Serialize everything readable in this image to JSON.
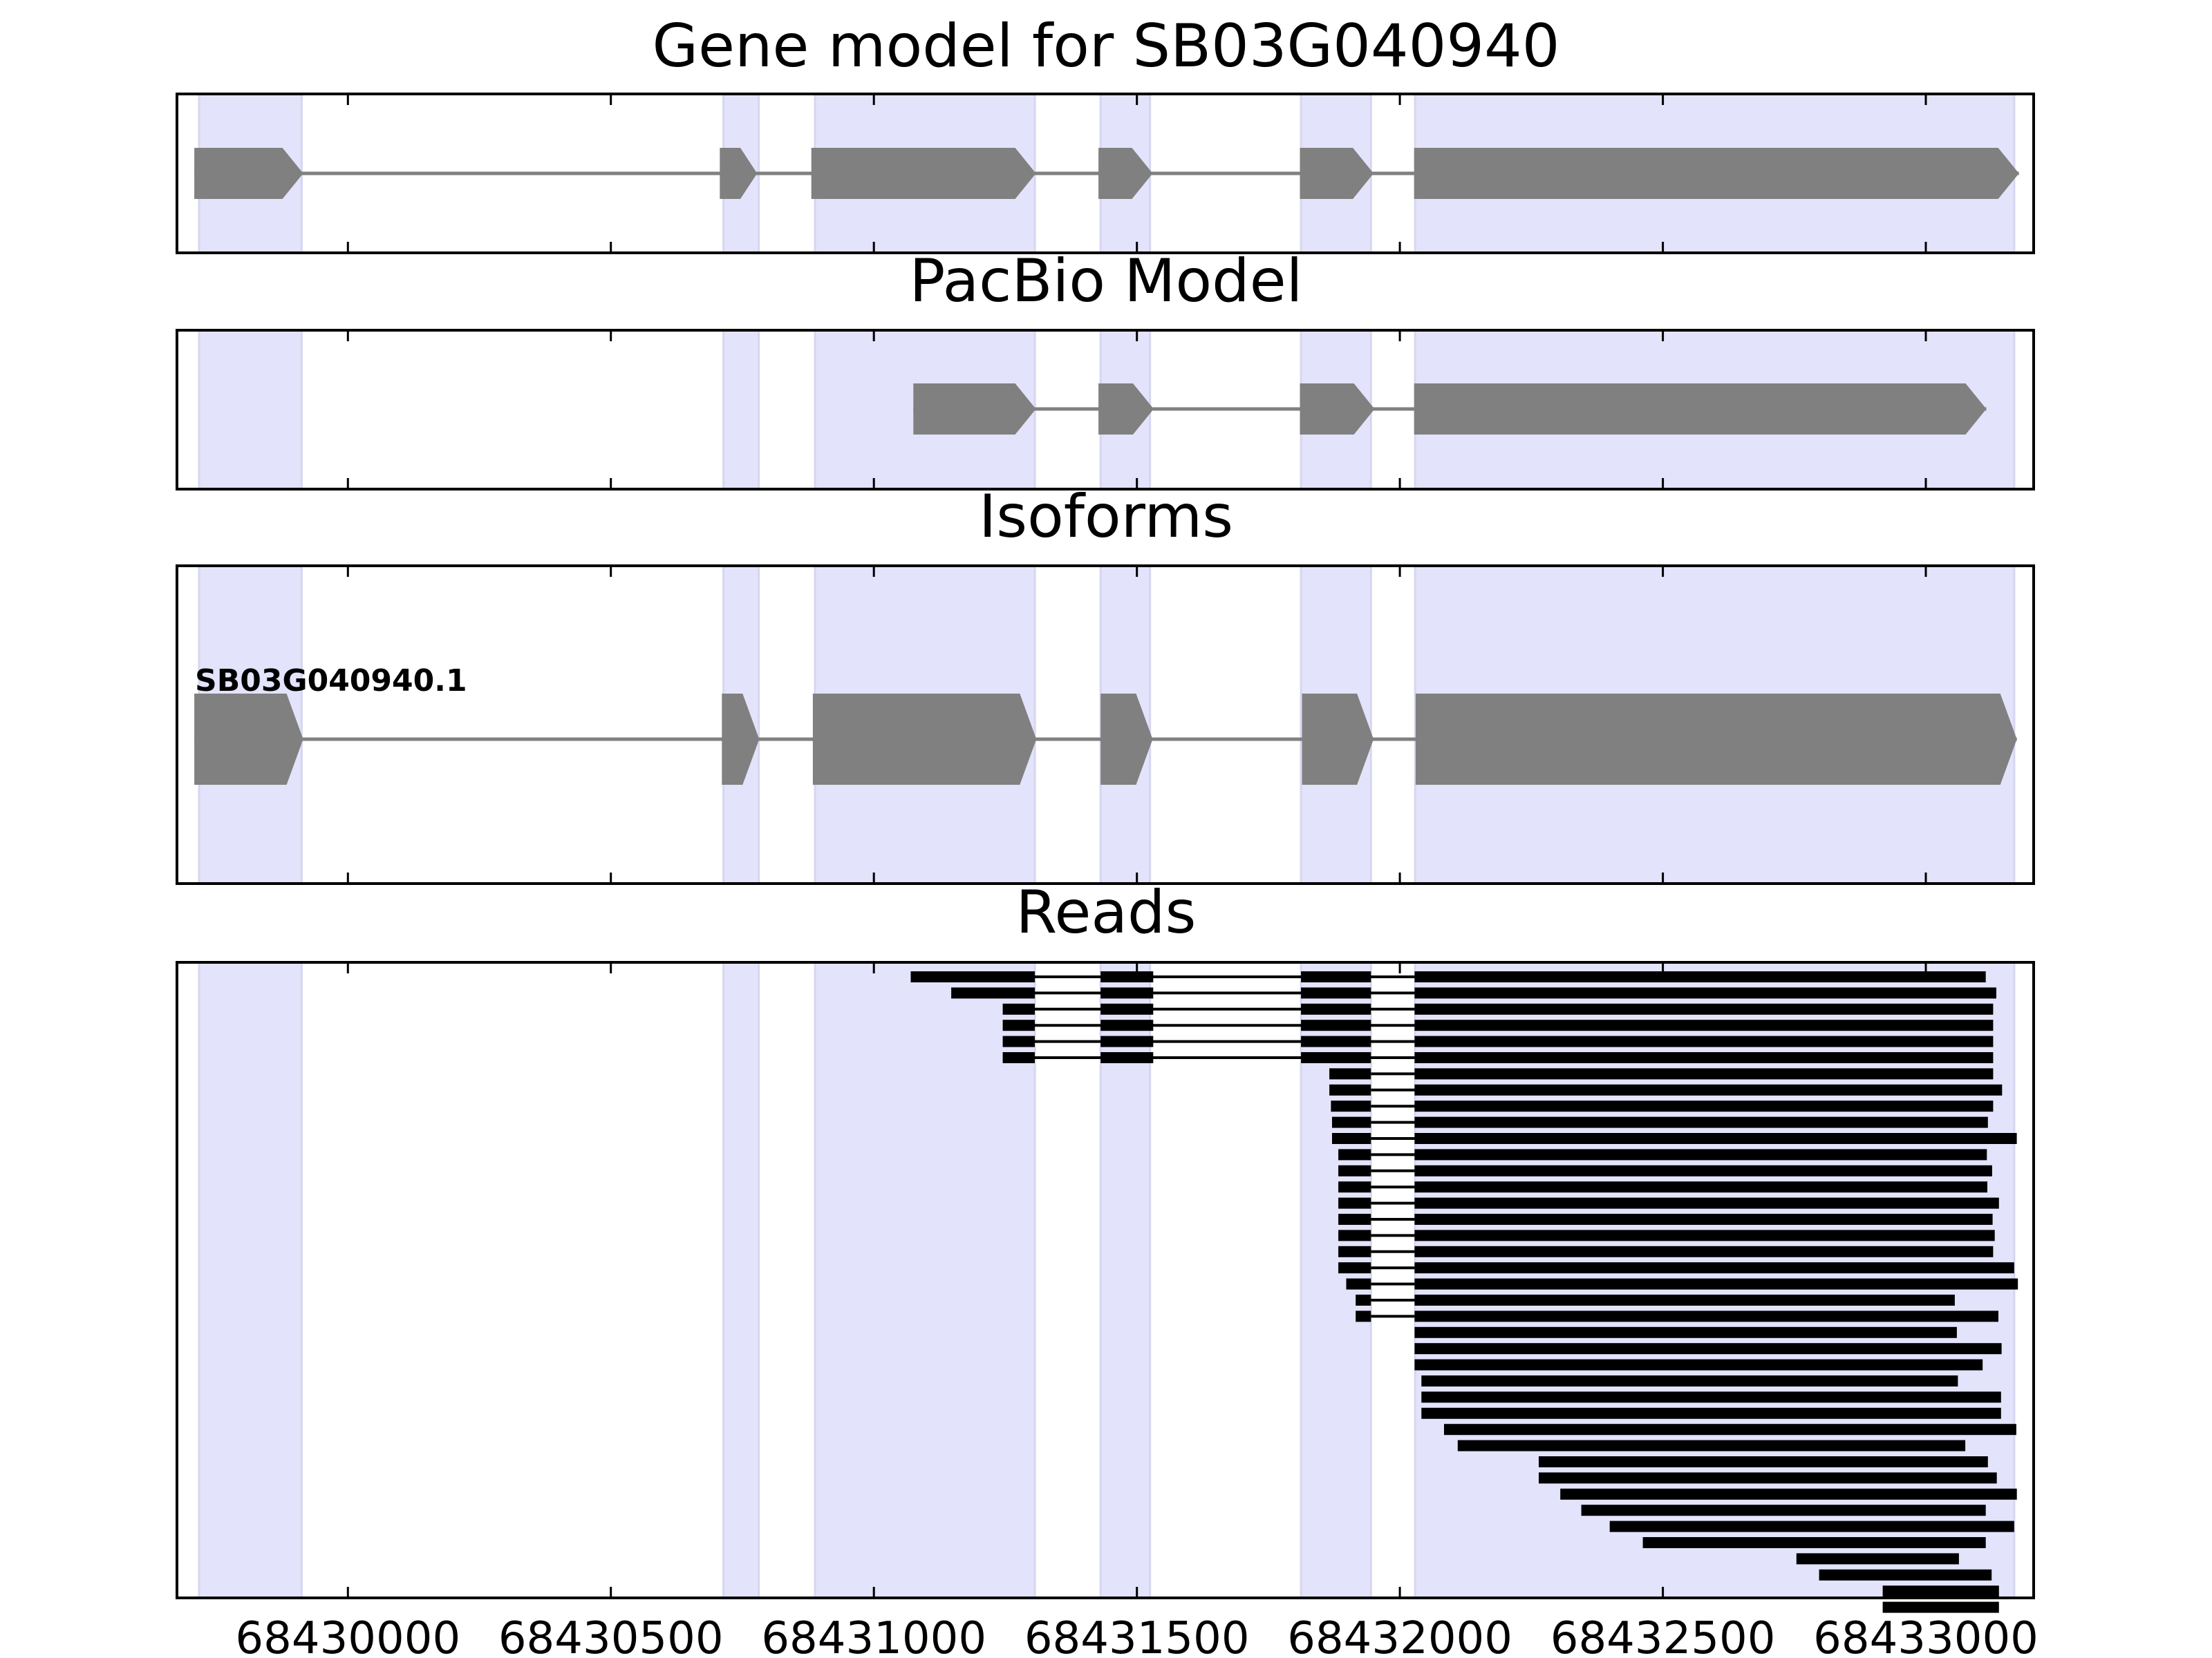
{
  "chart_data": {
    "type": "gene-track",
    "xlim": [
      68429675,
      68433205
    ],
    "x_ticks": [
      68430000,
      68430500,
      68431000,
      68431500,
      68432000,
      68432500,
      68433000
    ],
    "x_tick_labels": [
      "68430000",
      "68430500",
      "68431000",
      "68431500",
      "68432000",
      "68432500",
      "68433000"
    ],
    "colors": {
      "feature": "#808080",
      "read": "#000000",
      "exon_band": "#e3e3fb",
      "frame": "#000000"
    },
    "exon_bands": [
      [
        68429717,
        68429912
      ],
      [
        68430714,
        68430781
      ],
      [
        68430888,
        68431306
      ],
      [
        68431431,
        68431525
      ],
      [
        68431812,
        68431945
      ],
      [
        68432029,
        68433168
      ]
    ],
    "panels": [
      {
        "id": "gene-model",
        "title": "Gene model for SB03G040940",
        "tracks": [
          {
            "exons": [
              [
                68429708,
                68429915
              ],
              [
                68430707,
                68430778
              ],
              [
                68430881,
                68431308
              ],
              [
                68431427,
                68431530
              ],
              [
                68431810,
                68431950
              ],
              [
                68432027,
                68433177
              ]
            ]
          }
        ]
      },
      {
        "id": "pacbio-model",
        "title": "PacBio Model",
        "tracks": [
          {
            "exons": [
              [
                68431075,
                68431308
              ],
              [
                68431427,
                68431532
              ],
              [
                68431810,
                68431952
              ],
              [
                68432027,
                68433115
              ]
            ]
          }
        ]
      },
      {
        "id": "isoforms",
        "title": "Isoforms",
        "tracks": [
          {
            "label": "SB03G040940.1",
            "exons": [
              [
                68429708,
                68429915
              ],
              [
                68430711,
                68430782
              ],
              [
                68430884,
                68431309
              ],
              [
                68431431,
                68431530
              ],
              [
                68431814,
                68431950
              ],
              [
                68432030,
                68433173
              ]
            ]
          }
        ]
      },
      {
        "id": "reads",
        "title": "Reads",
        "tracks": [
          {
            "exons": [
              [
                68431070,
                68431306
              ],
              [
                68431431,
                68431531
              ],
              [
                68431812,
                68431945
              ],
              [
                68432028,
                68433114
              ]
            ]
          },
          {
            "exons": [
              [
                68431147,
                68431306
              ],
              [
                68431431,
                68431531
              ],
              [
                68431812,
                68431945
              ],
              [
                68432028,
                68433134
              ]
            ]
          },
          {
            "exons": [
              [
                68431245,
                68431306
              ],
              [
                68431431,
                68431531
              ],
              [
                68431812,
                68431945
              ],
              [
                68432028,
                68433128
              ]
            ]
          },
          {
            "exons": [
              [
                68431245,
                68431306
              ],
              [
                68431431,
                68431531
              ],
              [
                68431812,
                68431945
              ],
              [
                68432028,
                68433128
              ]
            ]
          },
          {
            "exons": [
              [
                68431245,
                68431306
              ],
              [
                68431431,
                68431531
              ],
              [
                68431812,
                68431945
              ],
              [
                68432028,
                68433128
              ]
            ]
          },
          {
            "exons": [
              [
                68431245,
                68431306
              ],
              [
                68431431,
                68431531
              ],
              [
                68431812,
                68431945
              ],
              [
                68432028,
                68433128
              ]
            ]
          },
          {
            "exons": [
              [
                68431866,
                68431945
              ],
              [
                68432028,
                68433128
              ]
            ]
          },
          {
            "exons": [
              [
                68431866,
                68431945
              ],
              [
                68432028,
                68433145
              ]
            ]
          },
          {
            "exons": [
              [
                68431869,
                68431945
              ],
              [
                68432028,
                68433128
              ]
            ]
          },
          {
            "exons": [
              [
                68431871,
                68431945
              ],
              [
                68432028,
                68433118
              ]
            ]
          },
          {
            "exons": [
              [
                68431871,
                68431945
              ],
              [
                68432028,
                68433173
              ]
            ]
          },
          {
            "exons": [
              [
                68431883,
                68431945
              ],
              [
                68432028,
                68433116
              ]
            ]
          },
          {
            "exons": [
              [
                68431883,
                68431945
              ],
              [
                68432028,
                68433126
              ]
            ]
          },
          {
            "exons": [
              [
                68431883,
                68431945
              ],
              [
                68432028,
                68433117
              ]
            ]
          },
          {
            "exons": [
              [
                68431883,
                68431945
              ],
              [
                68432028,
                68433139
              ]
            ]
          },
          {
            "exons": [
              [
                68431883,
                68431945
              ],
              [
                68432028,
                68433127
              ]
            ]
          },
          {
            "exons": [
              [
                68431883,
                68431945
              ],
              [
                68432028,
                68433131
              ]
            ]
          },
          {
            "exons": [
              [
                68431883,
                68431945
              ],
              [
                68432028,
                68433128
              ]
            ]
          },
          {
            "exons": [
              [
                68431883,
                68431945
              ],
              [
                68432028,
                68433168
              ]
            ]
          },
          {
            "exons": [
              [
                68431898,
                68431945
              ],
              [
                68432028,
                68433175
              ]
            ]
          },
          {
            "exons": [
              [
                68431916,
                68431945
              ],
              [
                68432028,
                68433055
              ]
            ]
          },
          {
            "exons": [
              [
                68431916,
                68431945
              ],
              [
                68432028,
                68433138
              ]
            ]
          },
          {
            "exons": [
              [
                68432028,
                68433059
              ]
            ]
          },
          {
            "exons": [
              [
                68432028,
                68433144
              ]
            ]
          },
          {
            "exons": [
              [
                68432028,
                68433108
              ]
            ]
          },
          {
            "exons": [
              [
                68432041,
                68433061
              ]
            ]
          },
          {
            "exons": [
              [
                68432041,
                68433143
              ]
            ]
          },
          {
            "exons": [
              [
                68432041,
                68433143
              ]
            ]
          },
          {
            "exons": [
              [
                68432084,
                68433172
              ]
            ]
          },
          {
            "exons": [
              [
                68432110,
                68433075
              ]
            ]
          },
          {
            "exons": [
              [
                68432264,
                68433118
              ]
            ]
          },
          {
            "exons": [
              [
                68432264,
                68433135
              ]
            ]
          },
          {
            "exons": [
              [
                68432305,
                68433173
              ]
            ]
          },
          {
            "exons": [
              [
                68432345,
                68433114
              ]
            ]
          },
          {
            "exons": [
              [
                68432399,
                68433168
              ]
            ]
          },
          {
            "exons": [
              [
                68432462,
                68433114
              ]
            ]
          },
          {
            "exons": [
              [
                68432754,
                68433063
              ]
            ]
          },
          {
            "exons": [
              [
                68432797,
                68433125
              ]
            ]
          },
          {
            "exons": [
              [
                68432918,
                68433139
              ]
            ]
          },
          {
            "exons": [
              [
                68432918,
                68433139
              ]
            ]
          }
        ]
      }
    ]
  }
}
